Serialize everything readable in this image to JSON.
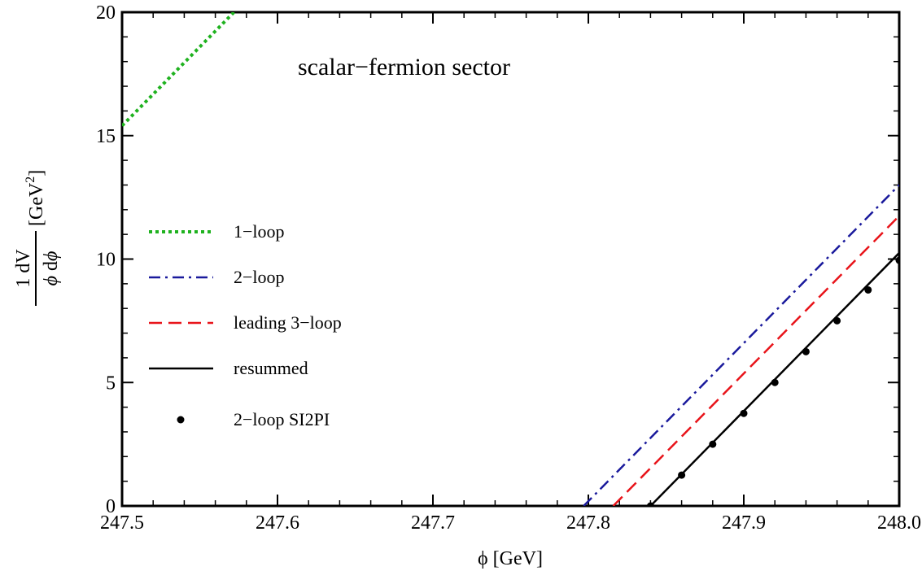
{
  "chart_data": {
    "type": "line",
    "title": "",
    "annotation": "scalar−fermion sector",
    "xlabel": "ϕ [GeV]",
    "ylabel": "1 dV / ϕ dϕ [GeV²]",
    "xlim": [
      247.5,
      248.0
    ],
    "ylim": [
      0,
      20
    ],
    "x_ticks": [
      247.5,
      247.6,
      247.7,
      247.8,
      247.9,
      248.0
    ],
    "x_tick_labels": [
      "247.5",
      "247.6",
      "247.7",
      "247.8",
      "247.9",
      "248.0"
    ],
    "y_ticks": [
      0,
      5,
      10,
      15,
      20
    ],
    "y_tick_labels": [
      "0",
      "5",
      "10",
      "15",
      "20"
    ],
    "grid": false,
    "legend_position": "left",
    "series": [
      {
        "name": "1−loop",
        "style": "dotted",
        "color": "#1fb21f",
        "x": [
          247.5,
          247.572
        ],
        "y": [
          15.4,
          20.0
        ]
      },
      {
        "name": "2−loop",
        "style": "dash-dot",
        "color": "#1a1a9c",
        "x": [
          247.797,
          248.0
        ],
        "y": [
          0,
          13.0
        ]
      },
      {
        "name": "leading 3−loop",
        "style": "dashed",
        "color": "#e8141a",
        "x": [
          247.816,
          248.0
        ],
        "y": [
          0,
          11.75
        ]
      },
      {
        "name": "resummed",
        "style": "solid",
        "color": "#000000",
        "x": [
          247.84,
          248.0
        ],
        "y": [
          0,
          10.25
        ]
      },
      {
        "name": "2−loop SI2PI",
        "style": "points",
        "color": "#000000",
        "x": [
          247.84,
          247.86,
          247.88,
          247.9,
          247.92,
          247.94,
          247.96,
          247.98,
          248.0
        ],
        "y": [
          0.0,
          1.25,
          2.5,
          3.75,
          5.0,
          6.25,
          7.5,
          8.75,
          9.95
        ]
      }
    ]
  }
}
